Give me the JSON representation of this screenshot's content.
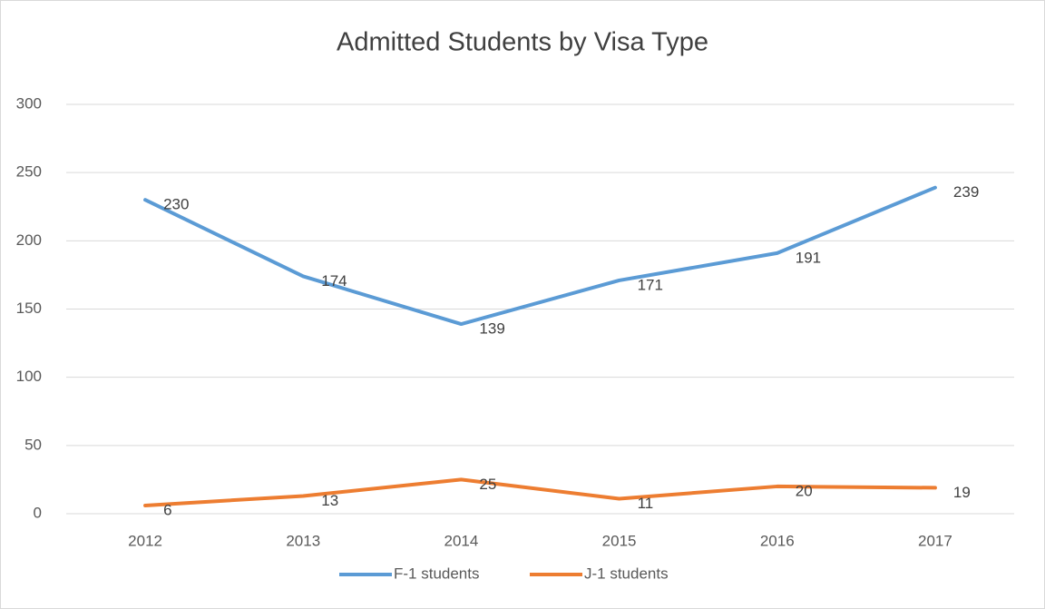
{
  "chart_data": {
    "type": "line",
    "title": "Admitted Students by Visa Type",
    "categories": [
      "2012",
      "2013",
      "2014",
      "2015",
      "2016",
      "2017"
    ],
    "series": [
      {
        "name": "F-1 students",
        "color": "#5b9bd5",
        "values": [
          230,
          174,
          139,
          171,
          191,
          239
        ]
      },
      {
        "name": "J-1 students",
        "color": "#ed7d31",
        "values": [
          6,
          13,
          25,
          11,
          20,
          19
        ]
      }
    ],
    "ylim": [
      0,
      300
    ],
    "yticks": [
      0,
      50,
      100,
      150,
      200,
      250,
      300
    ],
    "grid": true,
    "legend": "bottom"
  }
}
